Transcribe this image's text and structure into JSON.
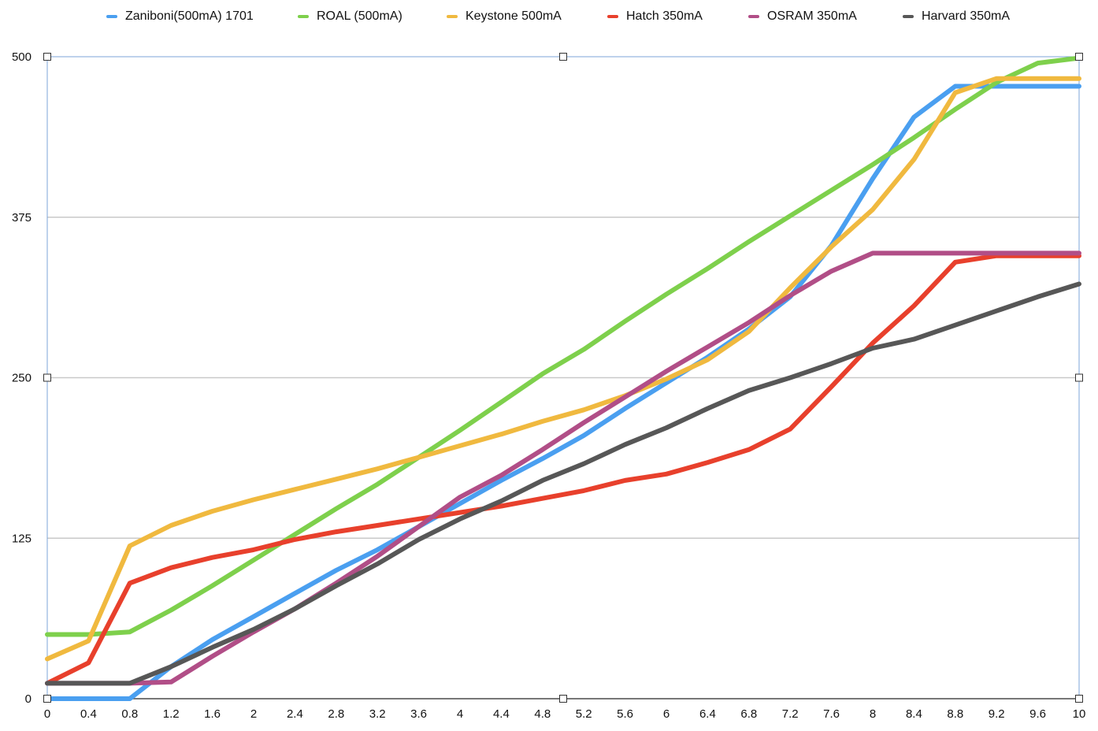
{
  "chart_data": {
    "type": "line",
    "title": "",
    "xlabel": "",
    "ylabel": "",
    "x": [
      0,
      0.4,
      0.8,
      1.2,
      1.6,
      2,
      2.4,
      2.8,
      3.2,
      3.6,
      4,
      4.4,
      4.8,
      5.2,
      5.6,
      6,
      6.4,
      6.8,
      7.2,
      7.6,
      8,
      8.4,
      8.8,
      9.2,
      9.6,
      10
    ],
    "x_tick_labels": [
      "0",
      "0.4",
      "0.8",
      "1.2",
      "1.6",
      "2",
      "2.4",
      "2.8",
      "3.2",
      "3.6",
      "4",
      "4.4",
      "4.8",
      "5.2",
      "5.6",
      "6",
      "6.4",
      "6.8",
      "7.2",
      "7.6",
      "8",
      "8.4",
      "8.8",
      "9.2",
      "9.6",
      "10"
    ],
    "xlim": [
      0,
      10
    ],
    "ylim": [
      0,
      500
    ],
    "y_ticks": [
      0,
      125,
      250,
      375,
      500
    ],
    "y_tick_labels": [
      "0",
      "125",
      "250",
      "375",
      "500"
    ],
    "grid": "horizontal",
    "legend_position": "top",
    "series": [
      {
        "name": "Zaniboni(500mA) 1701",
        "color": "#4a9ff0",
        "values": [
          0,
          0,
          0,
          25,
          46,
          64,
          82,
          100,
          116,
          134,
          152,
          170,
          187,
          205,
          226,
          246,
          266,
          288,
          313,
          353,
          405,
          453,
          477,
          477,
          477,
          477
        ]
      },
      {
        "name": "ROAL (500mA)",
        "color": "#7ed04c",
        "values": [
          50,
          50,
          52,
          69,
          88,
          108,
          128,
          148,
          167,
          188,
          209,
          231,
          253,
          272,
          294,
          315,
          335,
          356,
          376,
          396,
          416,
          437,
          459,
          480,
          495,
          499
        ]
      },
      {
        "name": "Keystone 500mA",
        "color": "#f0b93f",
        "values": [
          31,
          45,
          119,
          135,
          146,
          155,
          163,
          171,
          179,
          188,
          197,
          206,
          216,
          225,
          236,
          249,
          264,
          286,
          320,
          352,
          381,
          420,
          472,
          483,
          483,
          483
        ]
      },
      {
        "name": "Hatch 350mA",
        "color": "#e8402c",
        "values": [
          12,
          28,
          90,
          102,
          110,
          116,
          124,
          130,
          135,
          140,
          145,
          150,
          156,
          162,
          170,
          175,
          184,
          194,
          210,
          243,
          277,
          306,
          340,
          345,
          345,
          345
        ]
      },
      {
        "name": "OSRAM 350mA",
        "color": "#b14e87",
        "values": [
          12,
          12,
          12,
          13,
          33,
          52,
          70,
          90,
          111,
          134,
          157,
          174,
          194,
          215,
          235,
          255,
          274,
          293,
          314,
          333,
          347,
          347,
          347,
          347,
          347,
          347
        ]
      },
      {
        "name": "Harvard 350mA",
        "color": "#575757",
        "values": [
          12,
          12,
          12,
          25,
          40,
          54,
          70,
          88,
          105,
          124,
          140,
          154,
          170,
          183,
          198,
          211,
          226,
          240,
          250,
          261,
          273,
          280,
          291,
          302,
          313,
          323
        ]
      }
    ]
  }
}
